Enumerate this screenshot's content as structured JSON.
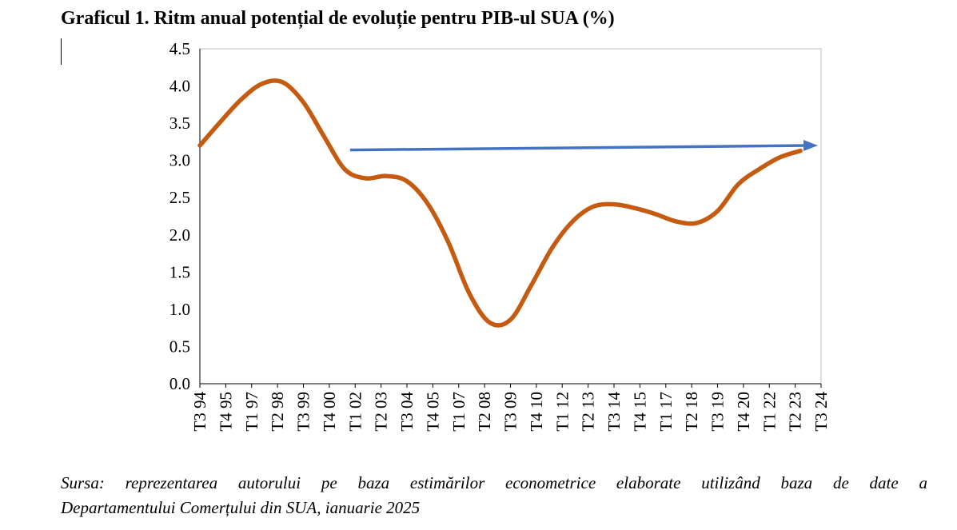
{
  "title": "Graficul 1. Ritm anual potențial de evoluție pentru PIB-ul SUA (%)",
  "source": {
    "line1": "Sursa: reprezentarea autorului pe baza estimărilor econometrice elaborate utilizând baza de date a",
    "line2": "Departamentului Comerțului din SUA, ianuarie 2025"
  },
  "chart_data": {
    "type": "line",
    "title": "Graficul 1. Ritm anual potențial de evoluție pentru PIB-ul SUA (%)",
    "xlabel": "",
    "ylabel": "",
    "ylim": [
      0,
      4.5
    ],
    "yticks": [
      "0.0",
      "0.5",
      "1.0",
      "1.5",
      "2.0",
      "2.5",
      "3.0",
      "3.5",
      "4.0",
      "4.5"
    ],
    "xticks": [
      "T3 94",
      "T4 95",
      "T1 97",
      "T2 98",
      "T3 99",
      "T4 00",
      "T1 02",
      "T2 03",
      "T3 04",
      "T4 05",
      "T1 07",
      "T2 08",
      "T3 09",
      "T4 10",
      "T1 12",
      "T2 13",
      "T3 14",
      "T4 15",
      "T1 17",
      "T2 18",
      "T3 19",
      "T4 20",
      "T1 22",
      "T2 23",
      "T3 24"
    ],
    "grid": false,
    "line_color": "#C55A11",
    "arrow_color": "#4472C4",
    "series": [
      {
        "values": [
          3.2,
          3.52,
          3.82,
          4.03,
          4.05,
          3.78,
          3.32,
          2.88,
          2.76,
          2.79,
          2.72,
          2.42,
          1.9,
          1.22,
          0.82,
          0.86,
          1.32,
          1.82,
          2.18,
          2.38,
          2.41,
          2.36,
          2.28,
          2.18,
          2.16,
          2.32,
          2.68,
          2.88,
          3.04,
          3.13
        ],
        "x_index": [
          0,
          0.8,
          1.6,
          2.4,
          3.2,
          4.0,
          4.8,
          5.6,
          6.4,
          7.2,
          8.0,
          8.8,
          9.6,
          10.4,
          11.2,
          12.0,
          12.8,
          13.6,
          14.4,
          15.2,
          16.0,
          16.8,
          17.6,
          18.4,
          19.2,
          20.0,
          20.8,
          21.6,
          22.4,
          23.2
        ]
      }
    ],
    "annotations": [
      {
        "type": "arrow",
        "from": {
          "x_index": 5.8,
          "y": 3.14
        },
        "to": {
          "x_index": 24.0,
          "y": 3.2
        }
      }
    ]
  }
}
